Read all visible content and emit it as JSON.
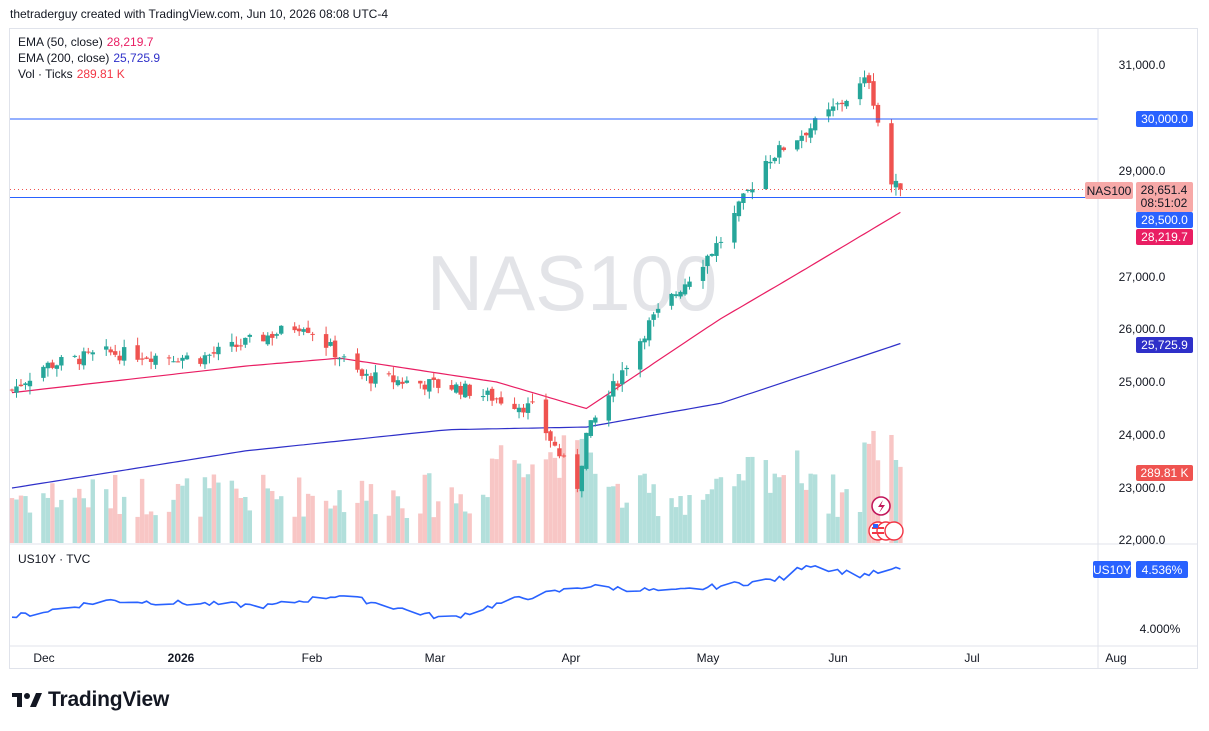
{
  "header": {
    "attribution": "thetraderguy created with TradingView.com, Jun 10, 2026 08:08 UTC-4"
  },
  "legend": [
    {
      "label": "EMA (50, close)",
      "value": "28,219.7",
      "color": "#e91e63"
    },
    {
      "label": "EMA (200, close)",
      "value": "25,725.9",
      "color": "#2f30c9"
    },
    {
      "label": "Vol · Ticks",
      "value": "289.81 K",
      "color": "#f23645"
    }
  ],
  "watermark": "NAS100",
  "sub_pane": {
    "label": "US10Y · TVC"
  },
  "price_axis": {
    "ticks": [
      "31,000.0",
      "29,000.0",
      "27,000.0",
      "26,000.0",
      "25,000.0",
      "24,000.0",
      "23,000.0",
      "22,000.0"
    ],
    "tags": {
      "level_30000": "30,000.0",
      "symbol": "NAS100",
      "last_price": "28,651.4",
      "countdown": "08:51:02",
      "level_28500": "28,500.0",
      "ema50": "28,219.7",
      "ema200": "25,725.9",
      "volume": "289.81 K"
    }
  },
  "sub_axis": {
    "symbol_tag": "US10Y",
    "value_tag": "4.536%",
    "tick": "4.000%"
  },
  "time_axis": [
    "Dec",
    "2026",
    "Feb",
    "Mar",
    "Apr",
    "May",
    "Jun",
    "Jul",
    "Aug"
  ],
  "brand": {
    "name": "TradingView"
  },
  "colors": {
    "up": "#26a69a",
    "down": "#ef5350",
    "ema50": "#e91e63",
    "ema200": "#2f30c9",
    "level_lines": "#2962ff",
    "us10y": "#2962ff",
    "vol_up": "#b2dfdb",
    "vol_down": "#f8c6c5"
  },
  "chart_data": {
    "type": "candlestick",
    "instrument": "NAS100",
    "timeframe": "daily",
    "horizontal_levels": [
      30000.0,
      28500.0
    ],
    "last_values": {
      "close": 28651.4,
      "ema50": 28219.7,
      "ema200": 25725.9,
      "volume_k": 289.81,
      "us10y": 4.536
    },
    "ohlc_anchors": [
      {
        "date": "2025-11-24",
        "close": 24850
      },
      {
        "date": "2025-12-01",
        "close": 25300
      },
      {
        "date": "2025-12-15",
        "close": 25550
      },
      {
        "date": "2026-01-05",
        "close": 25450
      },
      {
        "date": "2026-01-28",
        "close": 26100
      },
      {
        "date": "2026-02-10",
        "close": 25100
      },
      {
        "date": "2026-03-03",
        "close": 24900
      },
      {
        "date": "2026-03-20",
        "close": 24500
      },
      {
        "date": "2026-03-30",
        "close": 23050
      },
      {
        "date": "2026-04-01",
        "close": 24000
      },
      {
        "date": "2026-04-15",
        "close": 26100
      },
      {
        "date": "2026-05-01",
        "close": 27700
      },
      {
        "date": "2026-05-11",
        "close": 29200
      },
      {
        "date": "2026-05-25",
        "close": 30100
      },
      {
        "date": "2026-06-03",
        "close": 30750
      },
      {
        "date": "2026-06-08",
        "close": 28750
      },
      {
        "date": "2026-06-10",
        "close": 28651.4
      }
    ],
    "ema50_anchors": [
      {
        "date": "2025-11-24",
        "value": 24800
      },
      {
        "date": "2026-01-15",
        "value": 25300
      },
      {
        "date": "2026-02-05",
        "value": 25450
      },
      {
        "date": "2026-03-12",
        "value": 25000
      },
      {
        "date": "2026-04-01",
        "value": 24500
      },
      {
        "date": "2026-05-01",
        "value": 26200
      },
      {
        "date": "2026-06-10",
        "value": 28219.7
      }
    ],
    "ema200_anchors": [
      {
        "date": "2025-11-24",
        "value": 23000
      },
      {
        "date": "2026-01-15",
        "value": 23700
      },
      {
        "date": "2026-03-01",
        "value": 24100
      },
      {
        "date": "2026-04-01",
        "value": 24150
      },
      {
        "date": "2026-05-01",
        "value": 24600
      },
      {
        "date": "2026-06-10",
        "value": 25725.9
      }
    ],
    "us10y_anchors": [
      {
        "date": "2025-11-24",
        "value": 4.1
      },
      {
        "date": "2025-12-15",
        "value": 4.25
      },
      {
        "date": "2026-01-20",
        "value": 4.2
      },
      {
        "date": "2026-02-05",
        "value": 4.3
      },
      {
        "date": "2026-03-01",
        "value": 4.08
      },
      {
        "date": "2026-03-15",
        "value": 4.25
      },
      {
        "date": "2026-04-01",
        "value": 4.38
      },
      {
        "date": "2026-04-20",
        "value": 4.33
      },
      {
        "date": "2026-05-15",
        "value": 4.45
      },
      {
        "date": "2026-05-20",
        "value": 4.58
      },
      {
        "date": "2026-06-01",
        "value": 4.48
      },
      {
        "date": "2026-06-10",
        "value": 4.536
      }
    ]
  }
}
